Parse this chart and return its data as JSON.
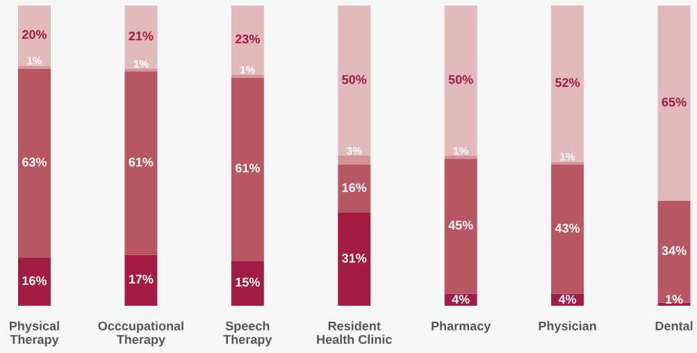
{
  "chart_data": {
    "type": "bar",
    "stacked": true,
    "tick_labels": "x",
    "categories": [
      "Physical\nTherapy",
      "Occcupational\nTherapy",
      "Speech\nTherapy",
      "Resident\nHealth Clinic",
      "Pharmacy",
      "Physician",
      "Dental"
    ],
    "series": [
      {
        "color": "#a31c44",
        "values": [
          16,
          17,
          15,
          31,
          4,
          4,
          1
        ],
        "value_labels": [
          "16%",
          "17%",
          "15%",
          "31%",
          "4%",
          "4%",
          "1%"
        ]
      },
      {
        "color": "#b85762",
        "values": [
          63,
          61,
          61,
          16,
          45,
          43,
          34
        ],
        "value_labels": [
          "63%",
          "61%",
          "61%",
          "16%",
          "45%",
          "43%",
          "34%"
        ]
      },
      {
        "color": "#d4949a",
        "values": [
          1,
          1,
          1,
          3,
          1,
          1,
          null
        ],
        "value_labels": [
          "1%",
          "1%",
          "1%",
          "3%",
          "1%",
          "1%",
          null
        ]
      },
      {
        "color": "#e3babc",
        "values": [
          20,
          21,
          23,
          50,
          50,
          52,
          65
        ],
        "value_labels": [
          "20%",
          "21%",
          "23%",
          "50%",
          "50%",
          "52%",
          "65%"
        ]
      }
    ]
  }
}
